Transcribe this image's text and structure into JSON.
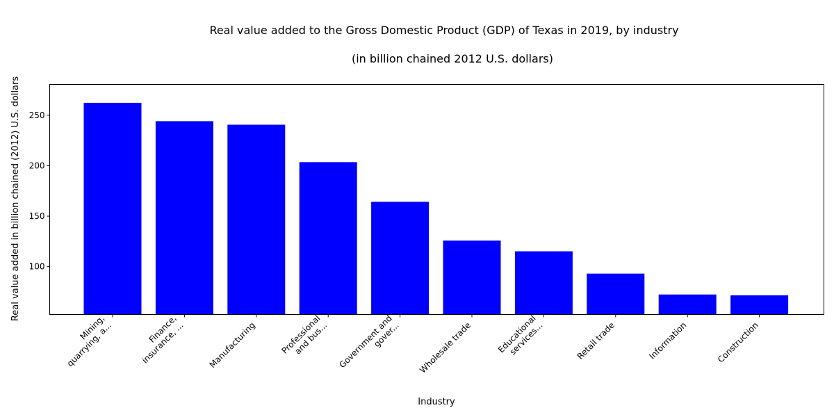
{
  "chart_data": {
    "type": "bar",
    "title_line1": "Real value added to the Gross Domestic Product (GDP) of Texas in 2019, by industry",
    "title_line2": "(in billion chained 2012 U.S. dollars)",
    "xlabel": "Industry",
    "ylabel": "Real value added in billion chained (2012) U.S. dollars",
    "categories": [
      [
        "Mining,",
        "quarrying, a..."
      ],
      [
        "Finance,",
        "insurance, ..."
      ],
      [
        "Manufacturing"
      ],
      [
        "Professional",
        "and bus..."
      ],
      [
        "Government and",
        "gover..."
      ],
      [
        "Wholesale trade"
      ],
      [
        "Educational",
        "services..."
      ],
      [
        "Retail trade"
      ],
      [
        "Information"
      ],
      [
        "Construction"
      ]
    ],
    "values": [
      262.3,
      244.1,
      240.6,
      203.5,
      164.2,
      125.8,
      115.2,
      93.1,
      72.4,
      71.6
    ],
    "yticks": [
      100,
      150,
      200,
      250
    ],
    "ylim": [
      52.6,
      280.5
    ],
    "bar_color": "#0000ff",
    "grid": false,
    "legend": "none"
  }
}
